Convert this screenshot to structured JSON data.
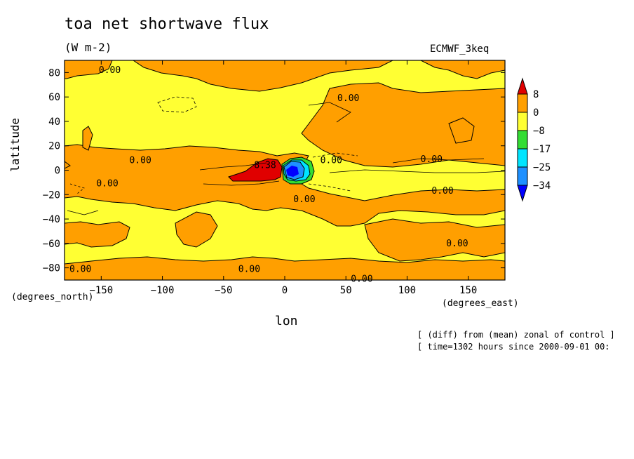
{
  "chart_data": {
    "type": "heatmap",
    "title": "toa net shortwave flux",
    "units": "(W m-2)",
    "model": "ECMWF_3keq",
    "xlabel": "lon",
    "xlabel_unit": "(degrees_east)",
    "ylabel": "latitude",
    "ylabel_unit": "(degrees_north)",
    "xlim": [
      -180,
      180
    ],
    "ylim": [
      -90,
      90
    ],
    "x_ticks": [
      -150,
      -100,
      -50,
      0,
      50,
      100,
      150
    ],
    "y_ticks": [
      80,
      60,
      40,
      20,
      0,
      -20,
      -40,
      -60,
      -80
    ],
    "legend": {
      "placement": "right",
      "levels": [
        "8",
        "0",
        "-8",
        "-17",
        "-25",
        "-34"
      ],
      "colors": [
        "#e00000",
        "#ff9f00",
        "#ffff33",
        "#33dd33",
        "#00e5ff",
        "#1e90ff",
        "#0000ff"
      ]
    },
    "contour_labels": [
      {
        "text": "0.00",
        "lon": -143,
        "lat": 82
      },
      {
        "text": "0.00",
        "lon": 52,
        "lat": 59
      },
      {
        "text": "0.00",
        "lon": -118,
        "lat": 8
      },
      {
        "text": "0.00",
        "lon": 38,
        "lat": 8
      },
      {
        "text": "0.00",
        "lon": 120,
        "lat": 9
      },
      {
        "text": "0.00",
        "lon": -145,
        "lat": -11
      },
      {
        "text": "0.00",
        "lon": 129,
        "lat": -17
      },
      {
        "text": "0.00",
        "lon": 16,
        "lat": -24
      },
      {
        "text": "0.00",
        "lon": 141,
        "lat": -60
      },
      {
        "text": "0.00",
        "lon": -167,
        "lat": -81
      },
      {
        "text": "0.00",
        "lon": -29,
        "lat": -81
      },
      {
        "text": "0.00",
        "lon": 63,
        "lat": -89
      },
      {
        "text": "8.38",
        "lon": -16,
        "lat": 4
      }
    ]
  },
  "annotations": {
    "line1": "[ (diff) from (mean) zonal of control ]",
    "line2": "[ time=1302 hours since 2000-09-01 00:"
  }
}
